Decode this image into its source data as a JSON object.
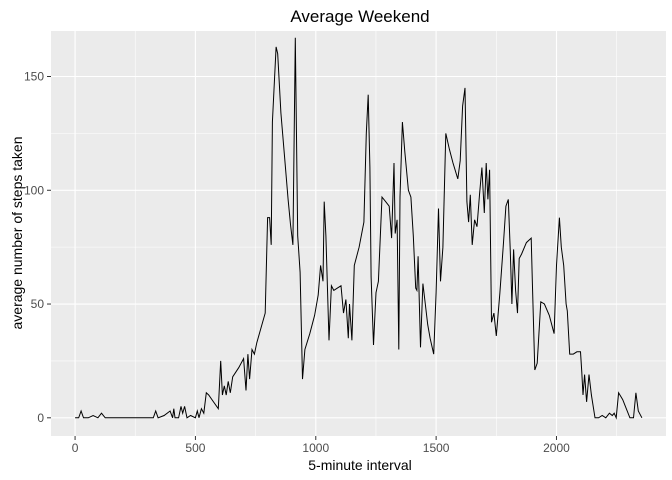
{
  "chart_data": {
    "type": "line",
    "title": "Average Weekend",
    "xlabel": "5-minute interval",
    "ylabel": "average number of steps taken",
    "xlim": [
      -100,
      2455
    ],
    "ylim": [
      -8,
      170
    ],
    "x_ticks": [
      0,
      500,
      1000,
      1500,
      2000
    ],
    "y_ticks": [
      0,
      50,
      100,
      150
    ],
    "x_tick_labels": [
      "0",
      "500",
      "1000",
      "1500",
      "2000"
    ],
    "y_tick_labels": [
      "0",
      "50",
      "100",
      "150"
    ],
    "grid": true,
    "panel_background": "#ebebeb",
    "gridline_color": "#ffffff",
    "line_color": "#000000",
    "series": [
      {
        "points": [
          [
            0,
            0
          ],
          [
            15,
            0
          ],
          [
            25,
            3
          ],
          [
            35,
            0
          ],
          [
            55,
            0
          ],
          [
            75,
            1
          ],
          [
            95,
            0
          ],
          [
            110,
            2
          ],
          [
            125,
            0
          ],
          [
            200,
            0
          ],
          [
            300,
            0
          ],
          [
            325,
            0
          ],
          [
            335,
            3
          ],
          [
            345,
            0
          ],
          [
            370,
            1
          ],
          [
            395,
            3
          ],
          [
            405,
            0
          ],
          [
            410,
            4
          ],
          [
            415,
            0
          ],
          [
            430,
            0
          ],
          [
            440,
            5
          ],
          [
            447,
            2
          ],
          [
            455,
            5
          ],
          [
            465,
            0
          ],
          [
            480,
            1
          ],
          [
            500,
            0
          ],
          [
            508,
            3
          ],
          [
            515,
            0
          ],
          [
            525,
            4
          ],
          [
            535,
            2
          ],
          [
            545,
            11
          ],
          [
            555,
            10
          ],
          [
            575,
            7
          ],
          [
            595,
            4
          ],
          [
            605,
            25
          ],
          [
            612,
            10
          ],
          [
            620,
            14
          ],
          [
            628,
            10
          ],
          [
            636,
            16
          ],
          [
            645,
            11
          ],
          [
            655,
            18
          ],
          [
            680,
            22
          ],
          [
            700,
            26
          ],
          [
            710,
            12
          ],
          [
            718,
            28
          ],
          [
            725,
            17
          ],
          [
            735,
            30
          ],
          [
            745,
            28
          ],
          [
            755,
            33
          ],
          [
            790,
            46
          ],
          [
            800,
            88
          ],
          [
            808,
            88
          ],
          [
            815,
            76
          ],
          [
            820,
            130
          ],
          [
            835,
            163
          ],
          [
            842,
            160
          ],
          [
            855,
            134
          ],
          [
            870,
            115
          ],
          [
            885,
            96
          ],
          [
            895,
            85
          ],
          [
            905,
            76
          ],
          [
            915,
            167
          ],
          [
            925,
            80
          ],
          [
            935,
            64
          ],
          [
            945,
            17
          ],
          [
            955,
            30
          ],
          [
            975,
            37
          ],
          [
            995,
            45
          ],
          [
            1010,
            54
          ],
          [
            1020,
            67
          ],
          [
            1030,
            60
          ],
          [
            1035,
            95
          ],
          [
            1042,
            80
          ],
          [
            1055,
            34
          ],
          [
            1065,
            58
          ],
          [
            1075,
            56
          ],
          [
            1090,
            57
          ],
          [
            1105,
            58
          ],
          [
            1115,
            46
          ],
          [
            1125,
            52
          ],
          [
            1135,
            35
          ],
          [
            1140,
            50
          ],
          [
            1150,
            34
          ],
          [
            1160,
            67
          ],
          [
            1180,
            75
          ],
          [
            1200,
            86
          ],
          [
            1210,
            125
          ],
          [
            1218,
            142
          ],
          [
            1225,
            110
          ],
          [
            1230,
            62
          ],
          [
            1240,
            32
          ],
          [
            1250,
            55
          ],
          [
            1260,
            60
          ],
          [
            1275,
            97
          ],
          [
            1290,
            95
          ],
          [
            1305,
            93
          ],
          [
            1315,
            79
          ],
          [
            1325,
            112
          ],
          [
            1330,
            81
          ],
          [
            1338,
            87
          ],
          [
            1345,
            30
          ],
          [
            1350,
            97
          ],
          [
            1360,
            130
          ],
          [
            1370,
            117
          ],
          [
            1385,
            100
          ],
          [
            1395,
            97
          ],
          [
            1405,
            80
          ],
          [
            1415,
            57
          ],
          [
            1420,
            56
          ],
          [
            1425,
            71
          ],
          [
            1435,
            31
          ],
          [
            1445,
            59
          ],
          [
            1455,
            50
          ],
          [
            1465,
            41
          ],
          [
            1475,
            35
          ],
          [
            1490,
            28
          ],
          [
            1500,
            55
          ],
          [
            1510,
            92
          ],
          [
            1518,
            60
          ],
          [
            1528,
            75
          ],
          [
            1540,
            125
          ],
          [
            1555,
            118
          ],
          [
            1570,
            112
          ],
          [
            1590,
            105
          ],
          [
            1600,
            113
          ],
          [
            1610,
            137
          ],
          [
            1620,
            145
          ],
          [
            1628,
            95
          ],
          [
            1635,
            86
          ],
          [
            1642,
            98
          ],
          [
            1650,
            76
          ],
          [
            1660,
            87
          ],
          [
            1670,
            84
          ],
          [
            1680,
            98
          ],
          [
            1690,
            110
          ],
          [
            1700,
            90
          ],
          [
            1708,
            112
          ],
          [
            1715,
            96
          ],
          [
            1722,
            109
          ],
          [
            1730,
            42
          ],
          [
            1740,
            46
          ],
          [
            1750,
            36
          ],
          [
            1765,
            55
          ],
          [
            1780,
            77
          ],
          [
            1790,
            93
          ],
          [
            1800,
            96
          ],
          [
            1808,
            73
          ],
          [
            1815,
            50
          ],
          [
            1822,
            74
          ],
          [
            1830,
            56
          ],
          [
            1838,
            46
          ],
          [
            1845,
            70
          ],
          [
            1855,
            72
          ],
          [
            1875,
            77
          ],
          [
            1895,
            79
          ],
          [
            1900,
            59
          ],
          [
            1910,
            21
          ],
          [
            1920,
            24
          ],
          [
            1935,
            51
          ],
          [
            1950,
            50
          ],
          [
            1970,
            45
          ],
          [
            1990,
            37
          ],
          [
            2000,
            67
          ],
          [
            2012,
            88
          ],
          [
            2020,
            75
          ],
          [
            2030,
            67
          ],
          [
            2040,
            50
          ],
          [
            2045,
            47
          ],
          [
            2055,
            28
          ],
          [
            2070,
            28
          ],
          [
            2085,
            29
          ],
          [
            2100,
            29
          ],
          [
            2105,
            20
          ],
          [
            2110,
            10
          ],
          [
            2117,
            19
          ],
          [
            2125,
            7
          ],
          [
            2135,
            19
          ],
          [
            2145,
            10
          ],
          [
            2160,
            0
          ],
          [
            2175,
            0
          ],
          [
            2190,
            1
          ],
          [
            2205,
            0
          ],
          [
            2220,
            2
          ],
          [
            2232,
            1
          ],
          [
            2240,
            2
          ],
          [
            2248,
            0
          ],
          [
            2258,
            11
          ],
          [
            2275,
            8
          ],
          [
            2290,
            4
          ],
          [
            2305,
            0
          ],
          [
            2320,
            0
          ],
          [
            2330,
            11
          ],
          [
            2340,
            3
          ],
          [
            2355,
            0
          ]
        ]
      }
    ]
  }
}
